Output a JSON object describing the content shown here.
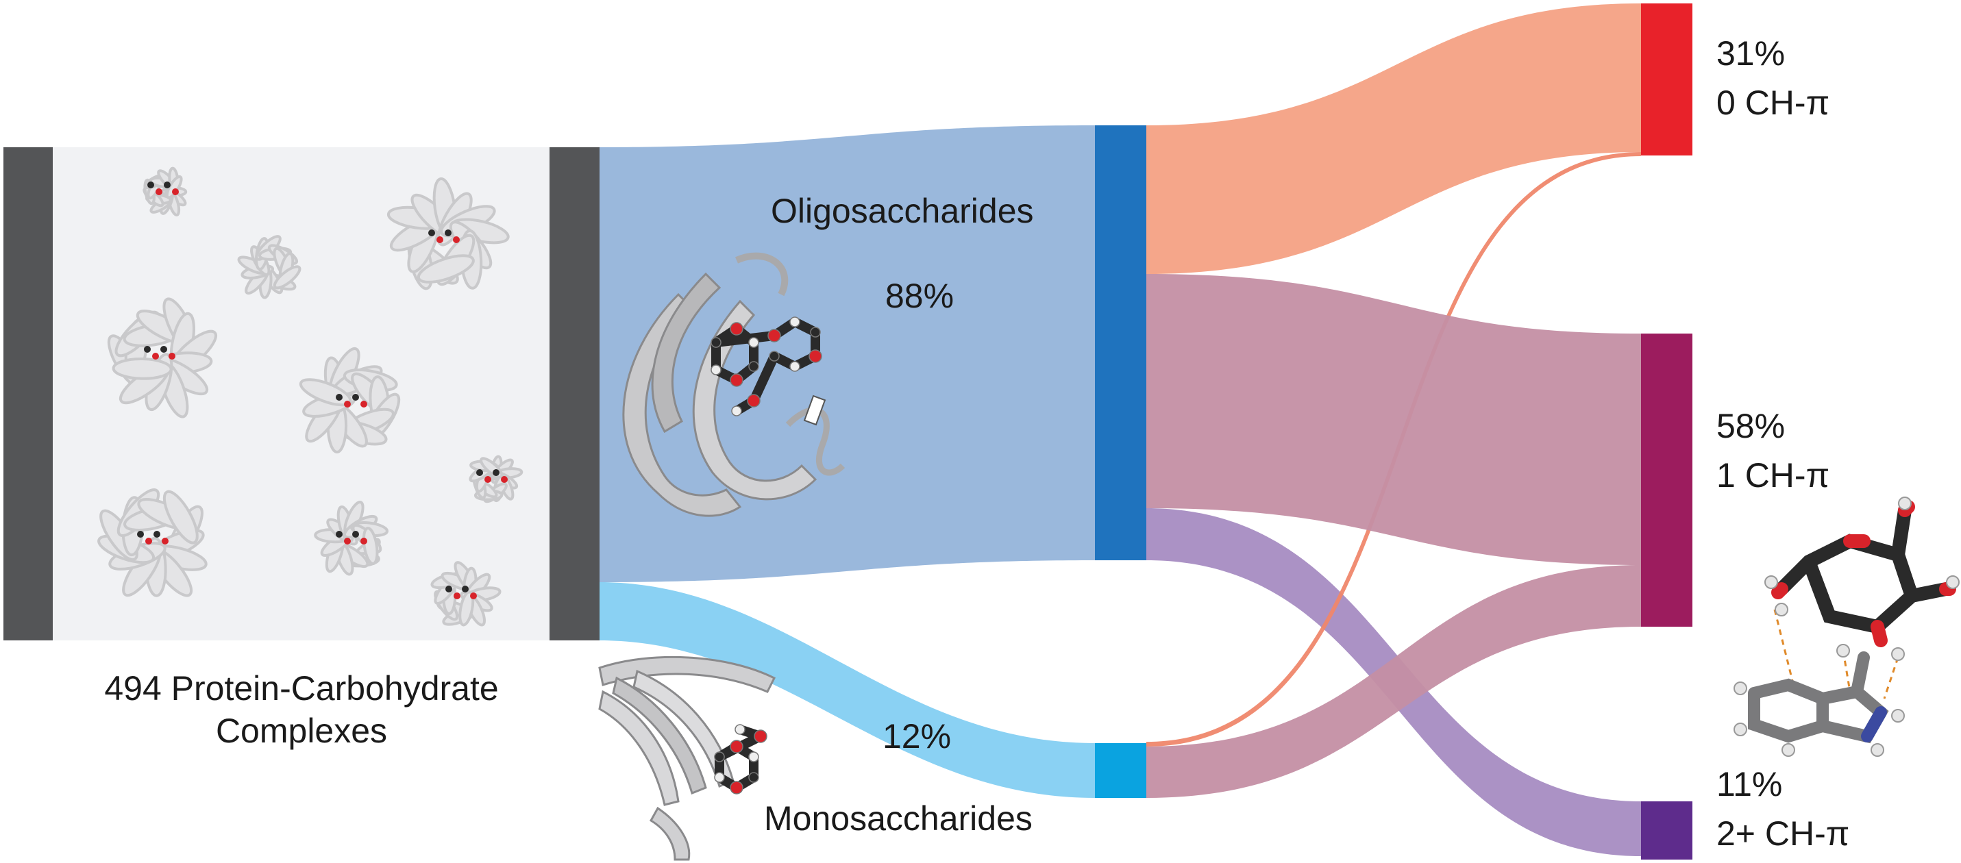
{
  "chart_data": {
    "type": "sankey",
    "source": {
      "label_line1": "494 Protein-Carbohydrate",
      "label_line2": "Complexes",
      "count": 494
    },
    "nodes": [
      {
        "id": "oligo",
        "label": "Oligosaccharides",
        "percent": "88%",
        "value": 88,
        "color": "#1f73be"
      },
      {
        "id": "mono",
        "label": "Monosaccharides",
        "percent": "12%",
        "value": 12,
        "color": "#0aa3e0"
      },
      {
        "id": "ch0",
        "percent": "31%",
        "label": "0 CH-π",
        "value": 31,
        "color": "#e8222a"
      },
      {
        "id": "ch1",
        "percent": "58%",
        "label": "1 CH-π",
        "value": 58,
        "color": "#9c1c5e"
      },
      {
        "id": "ch2",
        "percent": "11%",
        "label": "2+ CH-π",
        "value": 11,
        "color": "#5e2c8c"
      }
    ],
    "links": [
      {
        "from": "source",
        "to": "oligo",
        "color": "#95b4da"
      },
      {
        "from": "source",
        "to": "mono",
        "color": "#84cff2"
      },
      {
        "from": "oligo",
        "to": "ch0",
        "color": "#f4a184"
      },
      {
        "from": "oligo",
        "to": "ch1",
        "color": "#c48fa4"
      },
      {
        "from": "oligo",
        "to": "ch2",
        "color": "#a78cc2"
      },
      {
        "from": "mono",
        "to": "ch0",
        "color": "#ef876c"
      },
      {
        "from": "mono",
        "to": "ch1",
        "color": "#c48fa4"
      }
    ]
  },
  "colors": {
    "source_bar": "#545557",
    "panel_fill": "#f1f2f4",
    "protein_gray": "#c9c9cb",
    "ligand_dark": "#2a2a2a",
    "ligand_red": "#d8232a"
  },
  "icons": {
    "protein_collage": "protein-structures-collage-icon",
    "oligo_structure": "oligosaccharide-binding-protein-icon",
    "mono_structure": "monosaccharide-binding-protein-icon",
    "ch_pi_structure": "ch-pi-interaction-molecule-icon"
  }
}
